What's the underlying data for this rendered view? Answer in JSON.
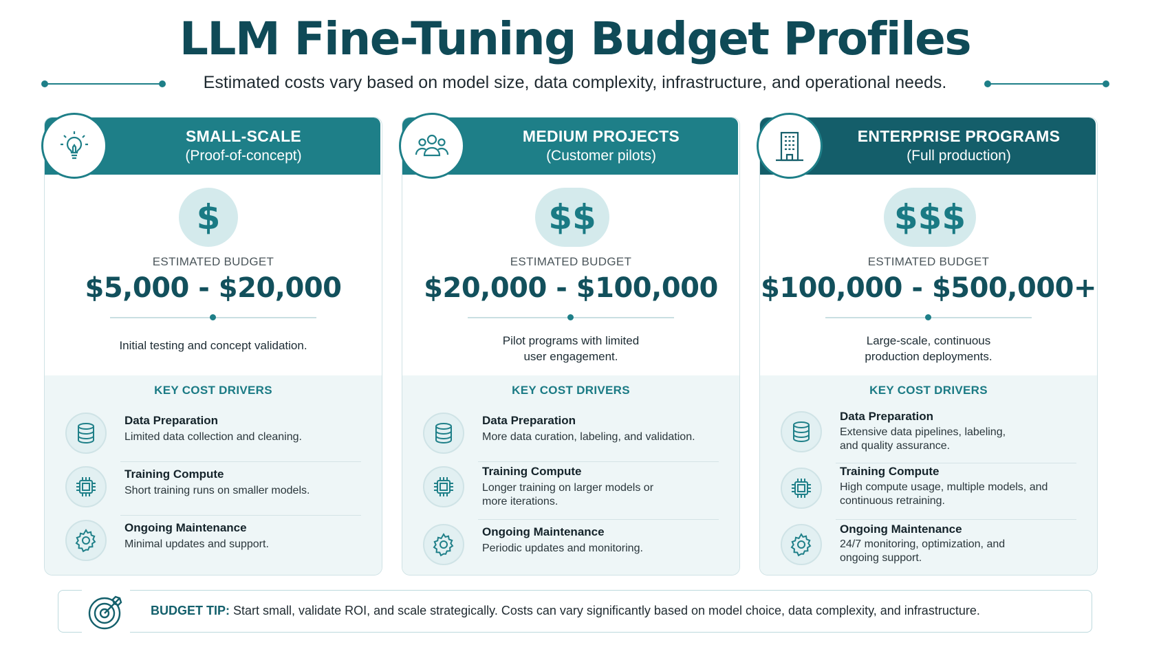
{
  "header": {
    "title": "LLM Fine-Tuning Budget Profiles",
    "subtitle": "Estimated costs vary based on model size, data complexity, infrastructure, and operational needs."
  },
  "colors": {
    "teal": "#1e7f88",
    "dark_teal": "#0f4a57",
    "enterprise_header": "#145e6a",
    "light_bg": "#eef6f7"
  },
  "cards": [
    {
      "title": "SMALL-SCALE",
      "subtitle": "(Proof-of-concept)",
      "icon": "lightbulb-icon",
      "symbol": "$",
      "budget_label": "ESTIMATED BUDGET",
      "budget": "$5,000 - $20,000",
      "description": "Initial testing and concept validation.",
      "drivers_title": "KEY COST DRIVERS",
      "drivers": [
        {
          "name": "Data Preparation",
          "desc": "Limited data collection and cleaning.",
          "icon": "database-icon"
        },
        {
          "name": "Training Compute",
          "desc": "Short training runs on smaller models.",
          "icon": "cpu-chip-icon"
        },
        {
          "name": "Ongoing Maintenance",
          "desc": "Minimal updates and support.",
          "icon": "gear-icon"
        }
      ]
    },
    {
      "title": "MEDIUM PROJECTS",
      "subtitle": "(Customer pilots)",
      "icon": "users-group-icon",
      "symbol": "$$",
      "budget_label": "ESTIMATED BUDGET",
      "budget": "$20,000 - $100,000",
      "description": "Pilot programs with limited user engagement.",
      "drivers_title": "KEY COST DRIVERS",
      "drivers": [
        {
          "name": "Data Preparation",
          "desc": "More data curation, labeling, and validation.",
          "icon": "database-icon"
        },
        {
          "name": "Training Compute",
          "desc": "Longer training on larger models or more iterations.",
          "icon": "cpu-chip-icon"
        },
        {
          "name": "Ongoing Maintenance",
          "desc": "Periodic updates and monitoring.",
          "icon": "gear-icon"
        }
      ]
    },
    {
      "title": "ENTERPRISE PROGRAMS",
      "subtitle": "(Full production)",
      "icon": "building-icon",
      "symbol": "$$$",
      "budget_label": "ESTIMATED BUDGET",
      "budget": "$100,000 - $500,000+",
      "description": "Large-scale, continuous production deployments.",
      "drivers_title": "KEY COST DRIVERS",
      "drivers": [
        {
          "name": "Data Preparation",
          "desc": "Extensive data pipelines, labeling, and quality assurance.",
          "icon": "database-icon"
        },
        {
          "name": "Training Compute",
          "desc": "High compute usage, multiple models, and continuous retraining.",
          "icon": "cpu-chip-icon"
        },
        {
          "name": "Ongoing Maintenance",
          "desc": "24/7 monitoring, optimization, and ongoing support.",
          "icon": "gear-icon"
        }
      ]
    }
  ],
  "tip": {
    "label": "BUDGET TIP:",
    "text": "Start small, validate ROI, and scale strategically. Costs can vary significantly based on model choice, data complexity, and infrastructure.",
    "icon": "target-icon"
  }
}
